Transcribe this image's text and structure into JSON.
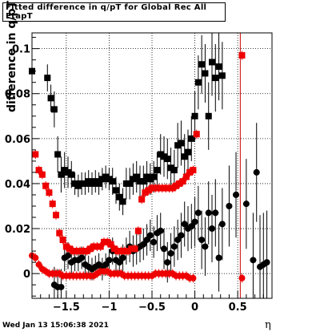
{
  "title": "Fitted difference in q/pT for Global Rec All EtapT",
  "footer": "Wed Jan 13 15:06:38 2021",
  "chart_data": {
    "type": "scatter",
    "title": "Fitted difference in q/pT for Global Rec All EtapT",
    "xlabel": "η",
    "ylabel": "difference in q/pT",
    "xlim": [
      -1.9,
      0.9
    ],
    "ylim": [
      -0.011,
      0.107
    ],
    "xticks": [
      -1.5,
      -1,
      -0.5,
      0,
      0.5
    ],
    "xtick_labels": [
      "−1.5",
      "−1",
      "−0.5",
      "0",
      "0.5"
    ],
    "yticks": [
      0,
      0.02,
      0.04,
      0.06,
      0.08,
      0.1
    ],
    "ytick_labels": [
      "0",
      "0.02",
      "0.04",
      "0.06",
      "0.08",
      "0.1"
    ],
    "grid": true,
    "vline": {
      "x": 0.53,
      "color": "#cc0000"
    },
    "series": [
      {
        "marker": "square",
        "color": "#000000",
        "points": [
          [
            -1.9,
            0.09,
            0.006
          ],
          [
            -1.72,
            0.087,
            0.006
          ],
          [
            -1.68,
            0.078,
            0.006
          ],
          [
            -1.64,
            0.073,
            0.008
          ],
          [
            -1.6,
            0.053,
            0.008
          ],
          [
            -1.56,
            0.044,
            0.008
          ],
          [
            -1.52,
            0.046,
            0.008
          ],
          [
            -1.48,
            0.045,
            0.007
          ],
          [
            -1.44,
            0.044,
            0.006
          ],
          [
            -1.4,
            0.04,
            0.005
          ],
          [
            -1.36,
            0.039,
            0.005
          ],
          [
            -1.32,
            0.04,
            0.005
          ],
          [
            -1.28,
            0.04,
            0.005
          ],
          [
            -1.24,
            0.041,
            0.005
          ],
          [
            -1.2,
            0.04,
            0.005
          ],
          [
            -1.16,
            0.041,
            0.005
          ],
          [
            -1.12,
            0.04,
            0.005
          ],
          [
            -1.08,
            0.042,
            0.005
          ],
          [
            -1.04,
            0.043,
            0.005
          ],
          [
            -1.0,
            0.042,
            0.005
          ],
          [
            -0.96,
            0.041,
            0.006
          ],
          [
            -0.92,
            0.037,
            0.006
          ],
          [
            -0.88,
            0.034,
            0.006
          ],
          [
            -0.84,
            0.032,
            0.006
          ],
          [
            -0.8,
            0.04,
            0.007
          ],
          [
            -0.76,
            0.04,
            0.007
          ],
          [
            -0.72,
            0.042,
            0.007
          ],
          [
            -0.68,
            0.043,
            0.007
          ],
          [
            -0.64,
            0.041,
            0.007
          ],
          [
            -0.6,
            0.041,
            0.007
          ],
          [
            -0.56,
            0.043,
            0.007
          ],
          [
            -0.52,
            0.042,
            0.007
          ],
          [
            -0.48,
            0.043,
            0.007
          ],
          [
            -0.44,
            0.046,
            0.008
          ],
          [
            -0.4,
            0.053,
            0.009
          ],
          [
            -0.36,
            0.052,
            0.009
          ],
          [
            -0.32,
            0.051,
            0.009
          ],
          [
            -0.28,
            0.047,
            0.009
          ],
          [
            -0.24,
            0.046,
            0.009
          ],
          [
            -0.2,
            0.057,
            0.01
          ],
          [
            -0.16,
            0.058,
            0.01
          ],
          [
            -0.12,
            0.052,
            0.01
          ],
          [
            -0.08,
            0.054,
            0.01
          ],
          [
            -0.04,
            0.06,
            0.01
          ],
          [
            0.0,
            0.07,
            0.011
          ],
          [
            0.04,
            0.085,
            0.012
          ],
          [
            0.08,
            0.093,
            0.013
          ],
          [
            0.12,
            0.089,
            0.013
          ],
          [
            0.16,
            0.07,
            0.015
          ],
          [
            0.2,
            0.094,
            0.015
          ],
          [
            0.24,
            0.087,
            0.015
          ],
          [
            0.28,
            0.092,
            0.015
          ],
          [
            0.32,
            0.088,
            0.015
          ]
        ]
      },
      {
        "marker": "circle",
        "color": "#000000",
        "points": [
          [
            -1.64,
            -0.005,
            0.008
          ],
          [
            -1.6,
            -0.006,
            0.008
          ],
          [
            -1.56,
            -0.006,
            0.008
          ],
          [
            -1.52,
            0.007,
            0.006
          ],
          [
            -1.48,
            0.008,
            0.006
          ],
          [
            -1.44,
            0.005,
            0.005
          ],
          [
            -1.4,
            0.006,
            0.005
          ],
          [
            -1.36,
            0.006,
            0.005
          ],
          [
            -1.32,
            0.007,
            0.005
          ],
          [
            -1.28,
            0.004,
            0.005
          ],
          [
            -1.24,
            0.003,
            0.005
          ],
          [
            -1.2,
            0.002,
            0.005
          ],
          [
            -1.16,
            0.003,
            0.005
          ],
          [
            -1.12,
            0.004,
            0.005
          ],
          [
            -1.08,
            0.002,
            0.005
          ],
          [
            -1.04,
            0.004,
            0.005
          ],
          [
            -1.0,
            0.006,
            0.005
          ],
          [
            -0.96,
            0.01,
            0.006
          ],
          [
            -0.92,
            0.006,
            0.006
          ],
          [
            -0.88,
            0.005,
            0.006
          ],
          [
            -0.84,
            0.007,
            0.006
          ],
          [
            -0.8,
            0.01,
            0.006
          ],
          [
            -0.76,
            0.012,
            0.007
          ],
          [
            -0.72,
            0.01,
            0.007
          ],
          [
            -0.68,
            0.011,
            0.007
          ],
          [
            -0.64,
            0.012,
            0.007
          ],
          [
            -0.6,
            0.013,
            0.007
          ],
          [
            -0.56,
            0.015,
            0.007
          ],
          [
            -0.52,
            0.017,
            0.007
          ],
          [
            -0.48,
            0.014,
            0.007
          ],
          [
            -0.44,
            0.018,
            0.008
          ],
          [
            -0.4,
            0.019,
            0.008
          ],
          [
            -0.36,
            0.011,
            0.009
          ],
          [
            -0.32,
            0.005,
            0.009
          ],
          [
            -0.28,
            0.009,
            0.009
          ],
          [
            -0.24,
            0.012,
            0.009
          ],
          [
            -0.2,
            0.015,
            0.009
          ],
          [
            -0.16,
            0.017,
            0.01
          ],
          [
            -0.12,
            0.022,
            0.01
          ],
          [
            -0.08,
            0.02,
            0.01
          ],
          [
            -0.04,
            0.021,
            0.01
          ],
          [
            0.0,
            0.023,
            0.011
          ],
          [
            0.04,
            0.027,
            0.012
          ],
          [
            0.08,
            0.015,
            0.013
          ],
          [
            0.12,
            0.012,
            0.013
          ],
          [
            0.16,
            0.027,
            0.014
          ],
          [
            0.2,
            0.02,
            0.015
          ],
          [
            0.24,
            0.027,
            0.015
          ],
          [
            0.28,
            0.007,
            0.015
          ],
          [
            0.32,
            0.022,
            0.016
          ],
          [
            0.4,
            0.03,
            0.018
          ],
          [
            0.48,
            0.035,
            0.019
          ],
          [
            0.6,
            0.031,
            0.02
          ],
          [
            0.68,
            0.006,
            0.021
          ],
          [
            0.72,
            0.045,
            0.022
          ],
          [
            0.76,
            0.003,
            0.023
          ],
          [
            0.8,
            0.004,
            0.023
          ],
          [
            0.84,
            0.005,
            0.023
          ]
        ]
      },
      {
        "marker": "square",
        "color": "#ee0000",
        "points": [
          [
            -1.86,
            0.053,
            0.002
          ],
          [
            -1.82,
            0.046,
            0.002
          ],
          [
            -1.78,
            0.044,
            0.002
          ],
          [
            -1.74,
            0.039,
            0.002
          ],
          [
            -1.7,
            0.036,
            0.002
          ],
          [
            -1.66,
            0.031,
            0.002
          ],
          [
            -1.62,
            0.026,
            0.002
          ],
          [
            -1.58,
            0.018,
            0.002
          ],
          [
            -1.54,
            0.015,
            0.002
          ],
          [
            -1.5,
            0.012,
            0.002
          ],
          [
            -1.46,
            0.011,
            0.002
          ],
          [
            -1.42,
            0.01,
            0.002
          ],
          [
            -1.38,
            0.01,
            0.002
          ],
          [
            -1.34,
            0.01,
            0.002
          ],
          [
            -1.3,
            0.01,
            0.002
          ],
          [
            -1.26,
            0.01,
            0.002
          ],
          [
            -1.22,
            0.011,
            0.002
          ],
          [
            -1.18,
            0.012,
            0.002
          ],
          [
            -1.14,
            0.012,
            0.002
          ],
          [
            -1.1,
            0.012,
            0.002
          ],
          [
            -1.06,
            0.014,
            0.002
          ],
          [
            -1.02,
            0.014,
            0.002
          ],
          [
            -0.98,
            0.013,
            0.002
          ],
          [
            -0.94,
            0.011,
            0.002
          ],
          [
            -0.9,
            0.01,
            0.002
          ],
          [
            -0.86,
            0.01,
            0.002
          ],
          [
            -0.82,
            0.01,
            0.002
          ],
          [
            -0.78,
            0.01,
            0.002
          ],
          [
            -0.74,
            0.011,
            0.002
          ],
          [
            -0.7,
            0.011,
            0.002
          ],
          [
            -0.66,
            0.019,
            0.002
          ],
          [
            -0.62,
            0.033,
            0.002
          ],
          [
            -0.58,
            0.036,
            0.002
          ],
          [
            -0.54,
            0.037,
            0.002
          ],
          [
            -0.5,
            0.038,
            0.002
          ],
          [
            -0.46,
            0.038,
            0.002
          ],
          [
            -0.42,
            0.038,
            0.002
          ],
          [
            -0.38,
            0.038,
            0.002
          ],
          [
            -0.34,
            0.038,
            0.002
          ],
          [
            -0.3,
            0.038,
            0.002
          ],
          [
            -0.26,
            0.038,
            0.002
          ],
          [
            -0.22,
            0.039,
            0.002
          ],
          [
            -0.18,
            0.04,
            0.002
          ],
          [
            -0.14,
            0.041,
            0.002
          ],
          [
            -0.1,
            0.043,
            0.002
          ],
          [
            -0.06,
            0.045,
            0.002
          ],
          [
            -0.02,
            0.046,
            0.002
          ],
          [
            0.02,
            0.062,
            0.002
          ],
          [
            0.55,
            0.097,
            0.002
          ]
        ]
      },
      {
        "marker": "circle",
        "color": "#ee0000",
        "points": [
          [
            -1.9,
            0.008,
            0.002
          ],
          [
            -1.86,
            0.007,
            0.002
          ],
          [
            -1.82,
            0.004,
            0.002
          ],
          [
            -1.78,
            0.002,
            0.002
          ],
          [
            -1.74,
            0.001,
            0.002
          ],
          [
            -1.7,
            0.0,
            0.002
          ],
          [
            -1.66,
            0.0,
            0.002
          ],
          [
            -1.62,
            0.0,
            0.002
          ],
          [
            -1.58,
            0.0,
            0.002
          ],
          [
            -1.54,
            -0.001,
            0.002
          ],
          [
            -1.5,
            -0.001,
            0.002
          ],
          [
            -1.46,
            -0.001,
            0.002
          ],
          [
            -1.42,
            -0.001,
            0.002
          ],
          [
            -1.38,
            -0.001,
            0.002
          ],
          [
            -1.34,
            -0.001,
            0.002
          ],
          [
            -1.3,
            -0.001,
            0.002
          ],
          [
            -1.26,
            -0.001,
            0.002
          ],
          [
            -1.22,
            -0.001,
            0.002
          ],
          [
            -1.18,
            -0.001,
            0.002
          ],
          [
            -1.14,
            0.0,
            0.002
          ],
          [
            -1.1,
            0.001,
            0.002
          ],
          [
            -1.06,
            0.001,
            0.002
          ],
          [
            -1.02,
            0.001,
            0.002
          ],
          [
            -0.98,
            0.0,
            0.002
          ],
          [
            -0.94,
            0.0,
            0.002
          ],
          [
            -0.9,
            0.0,
            0.002
          ],
          [
            -0.86,
            0.0,
            0.002
          ],
          [
            -0.82,
            -0.001,
            0.002
          ],
          [
            -0.78,
            -0.001,
            0.002
          ],
          [
            -0.74,
            -0.001,
            0.002
          ],
          [
            -0.7,
            -0.001,
            0.002
          ],
          [
            -0.66,
            -0.001,
            0.002
          ],
          [
            -0.62,
            -0.001,
            0.002
          ],
          [
            -0.58,
            -0.001,
            0.002
          ],
          [
            -0.54,
            -0.001,
            0.002
          ],
          [
            -0.5,
            -0.001,
            0.002
          ],
          [
            -0.46,
            0.0,
            0.002
          ],
          [
            -0.42,
            0.0,
            0.002
          ],
          [
            -0.38,
            0.0,
            0.002
          ],
          [
            -0.34,
            0.0,
            0.002
          ],
          [
            -0.3,
            0.0,
            0.002
          ],
          [
            -0.26,
            0.0,
            0.002
          ],
          [
            -0.22,
            -0.001,
            0.002
          ],
          [
            -0.18,
            -0.001,
            0.002
          ],
          [
            -0.14,
            -0.001,
            0.002
          ],
          [
            -0.1,
            -0.001,
            0.002
          ],
          [
            -0.06,
            -0.002,
            0.002
          ],
          [
            -0.02,
            -0.002,
            0.002
          ],
          [
            0.55,
            -0.002,
            0.002
          ]
        ]
      }
    ]
  }
}
